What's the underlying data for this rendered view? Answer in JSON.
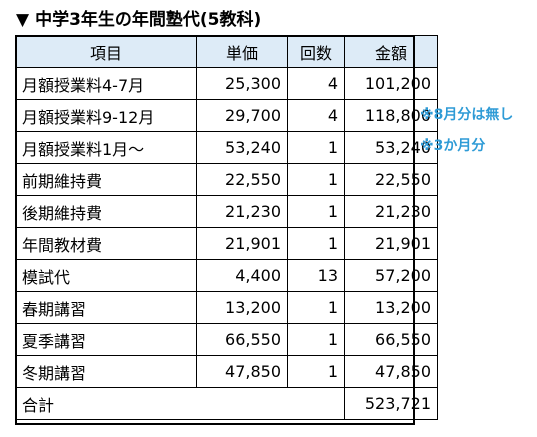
{
  "title": "中学3年生の年間塾代(5教科)",
  "title_marker": "▼",
  "headers": [
    "項目",
    "単価",
    "回数",
    "金額"
  ],
  "rows": [
    [
      "月額授業料4-7月",
      "25,300",
      "4",
      "101,200"
    ],
    [
      "月額授業料9-12月",
      "29,700",
      "4",
      "118,800"
    ],
    [
      "月額授業料1月～",
      "53,240",
      "1",
      "53,240"
    ],
    [
      "前期維持費",
      "22,550",
      "1",
      "22,550"
    ],
    [
      "後期維持費",
      "21,230",
      "1",
      "21,230"
    ],
    [
      "年間教材費",
      "21,901",
      "1",
      "21,901"
    ],
    [
      "模試代",
      "4,400",
      "13",
      "57,200"
    ],
    [
      "春期講習",
      "13,200",
      "1",
      "13,200"
    ],
    [
      "夏季講習",
      "66,550",
      "1",
      "66,550"
    ],
    [
      "冬期講習",
      "47,850",
      "1",
      "47,850"
    ]
  ],
  "total": {
    "label": "合計",
    "value": "523,721"
  },
  "notes": [
    "※8月分は無し",
    "※3か月分"
  ],
  "colors": {
    "header_bg": "#ddebf7",
    "note": "#2e9bd6"
  }
}
